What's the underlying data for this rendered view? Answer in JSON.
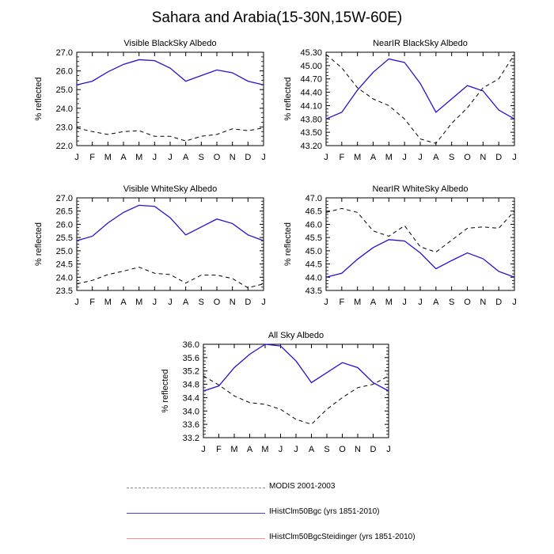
{
  "title": "Sahara and Arabia(15-30N,15W-60E)",
  "colors": {
    "modis": "#000000",
    "bgc": "#2a0fd0",
    "steidinger": "#ff2a55"
  },
  "legend": [
    {
      "label": "MODIS 2001-2003",
      "style": "dashed",
      "color_key": "modis"
    },
    {
      "label": "IHistClm50Bgc (yrs 1851-2010)",
      "style": "solid",
      "color_key": "bgc"
    },
    {
      "label": "IHistClm50BgcSteidinger (yrs 1851-2010)",
      "style": "solid",
      "color_key": "steidinger"
    }
  ],
  "chart_data": [
    {
      "type": "line",
      "title": "Visible BlackSky Albedo",
      "ylabel": "% reflected",
      "categories": [
        "J",
        "F",
        "M",
        "A",
        "M",
        "J",
        "J",
        "A",
        "S",
        "O",
        "N",
        "D",
        "J"
      ],
      "ylim": [
        22.0,
        27.0
      ],
      "yticks": [
        "22.0",
        "23.0",
        "24.0",
        "25.0",
        "26.0",
        "27.0"
      ],
      "ytick_values": [
        22.0,
        23.0,
        24.0,
        25.0,
        26.0,
        27.0
      ],
      "series": [
        {
          "name": "MODIS 2001-2003",
          "style": "dashed",
          "color_key": "modis",
          "values": [
            22.95,
            22.75,
            22.6,
            22.75,
            22.8,
            22.5,
            22.5,
            22.25,
            22.5,
            22.6,
            22.9,
            22.8,
            22.95
          ]
        },
        {
          "name": "IHistClm50Bgc (yrs 1851-2010)",
          "style": "solid",
          "color_key": "bgc",
          "values": [
            25.25,
            25.45,
            25.95,
            26.35,
            26.6,
            26.55,
            26.15,
            25.45,
            25.75,
            26.05,
            25.9,
            25.45,
            25.25
          ]
        }
      ]
    },
    {
      "type": "line",
      "title": "NearIR BlackSky Albedo",
      "ylabel": "% reflected",
      "categories": [
        "J",
        "F",
        "M",
        "A",
        "M",
        "J",
        "J",
        "A",
        "S",
        "O",
        "N",
        "D",
        "J"
      ],
      "ylim": [
        43.2,
        45.3
      ],
      "yticks": [
        "43.20",
        "43.50",
        "43.80",
        "44.10",
        "44.40",
        "44.70",
        "45.00",
        "45.30"
      ],
      "ytick_values": [
        43.2,
        43.5,
        43.8,
        44.1,
        44.4,
        44.7,
        45.0,
        45.3
      ],
      "series": [
        {
          "name": "MODIS 2001-2003",
          "style": "dashed",
          "color_key": "modis",
          "values": [
            45.25,
            44.95,
            44.5,
            44.25,
            44.1,
            43.8,
            43.35,
            43.25,
            43.7,
            44.05,
            44.5,
            44.7,
            45.25
          ]
        },
        {
          "name": "IHistClm50Bgc (yrs 1851-2010)",
          "style": "solid",
          "color_key": "bgc",
          "values": [
            43.8,
            43.95,
            44.45,
            44.85,
            45.15,
            45.07,
            44.6,
            43.95,
            44.25,
            44.55,
            44.43,
            44.0,
            43.8
          ]
        }
      ]
    },
    {
      "type": "line",
      "title": "Visible WhiteSky Albedo",
      "ylabel": "% reflected",
      "categories": [
        "J",
        "F",
        "M",
        "A",
        "M",
        "J",
        "J",
        "A",
        "S",
        "O",
        "N",
        "D",
        "J"
      ],
      "ylim": [
        23.5,
        27.0
      ],
      "yticks": [
        "23.5",
        "24.0",
        "24.5",
        "25.0",
        "25.5",
        "26.0",
        "26.5",
        "27.0"
      ],
      "ytick_values": [
        23.5,
        24.0,
        24.5,
        25.0,
        25.5,
        26.0,
        26.5,
        27.0
      ],
      "series": [
        {
          "name": "MODIS 2001-2003",
          "style": "dashed",
          "color_key": "modis",
          "values": [
            23.75,
            23.88,
            24.1,
            24.23,
            24.38,
            24.15,
            24.1,
            23.78,
            24.08,
            24.08,
            23.95,
            23.6,
            23.75
          ]
        },
        {
          "name": "IHistClm50Bgc (yrs 1851-2010)",
          "style": "solid",
          "color_key": "bgc",
          "values": [
            25.38,
            25.55,
            26.05,
            26.45,
            26.72,
            26.68,
            26.25,
            25.6,
            25.9,
            26.2,
            26.03,
            25.6,
            25.38
          ]
        }
      ]
    },
    {
      "type": "line",
      "title": "NearIR WhiteSky Albedo",
      "ylabel": "% reflected",
      "categories": [
        "J",
        "F",
        "M",
        "A",
        "M",
        "J",
        "J",
        "A",
        "S",
        "O",
        "N",
        "D",
        "J"
      ],
      "ylim": [
        43.5,
        47.0
      ],
      "yticks": [
        "43.5",
        "44.0",
        "44.5",
        "45.0",
        "45.5",
        "46.0",
        "46.5",
        "47.0"
      ],
      "ytick_values": [
        43.5,
        44.0,
        44.5,
        45.0,
        45.5,
        46.0,
        46.5,
        47.0
      ],
      "series": [
        {
          "name": "MODIS 2001-2003",
          "style": "dashed",
          "color_key": "modis",
          "values": [
            46.45,
            46.6,
            46.45,
            45.75,
            45.55,
            45.95,
            45.15,
            44.95,
            45.4,
            45.85,
            45.9,
            45.85,
            46.5
          ]
        },
        {
          "name": "IHistClm50Bgc (yrs 1851-2010)",
          "style": "solid",
          "color_key": "bgc",
          "values": [
            44.0,
            44.15,
            44.68,
            45.12,
            45.42,
            45.37,
            44.92,
            44.32,
            44.63,
            44.92,
            44.7,
            44.22,
            44.0
          ]
        }
      ]
    },
    {
      "type": "line",
      "title": "All Sky Albedo",
      "ylabel": "% reflected",
      "categories": [
        "J",
        "F",
        "M",
        "A",
        "M",
        "J",
        "J",
        "A",
        "S",
        "O",
        "N",
        "D",
        "J"
      ],
      "ylim": [
        33.2,
        36.0
      ],
      "yticks": [
        "33.2",
        "33.6",
        "34.0",
        "34.4",
        "34.8",
        "35.2",
        "35.6",
        "36.0"
      ],
      "ytick_values": [
        33.2,
        33.6,
        34.0,
        34.4,
        34.8,
        35.2,
        35.6,
        36.0
      ],
      "series": [
        {
          "name": "MODIS 2001-2003",
          "style": "dashed",
          "color_key": "modis",
          "values": [
            35.05,
            34.78,
            34.45,
            34.25,
            34.2,
            34.05,
            33.75,
            33.6,
            34.05,
            34.4,
            34.7,
            34.8,
            35.05
          ]
        },
        {
          "name": "IHistClm50Bgc (yrs 1851-2010)",
          "style": "solid",
          "color_key": "bgc",
          "values": [
            34.6,
            34.75,
            35.3,
            35.7,
            36.0,
            35.95,
            35.5,
            34.85,
            35.15,
            35.45,
            35.3,
            34.85,
            34.6
          ]
        }
      ]
    }
  ]
}
